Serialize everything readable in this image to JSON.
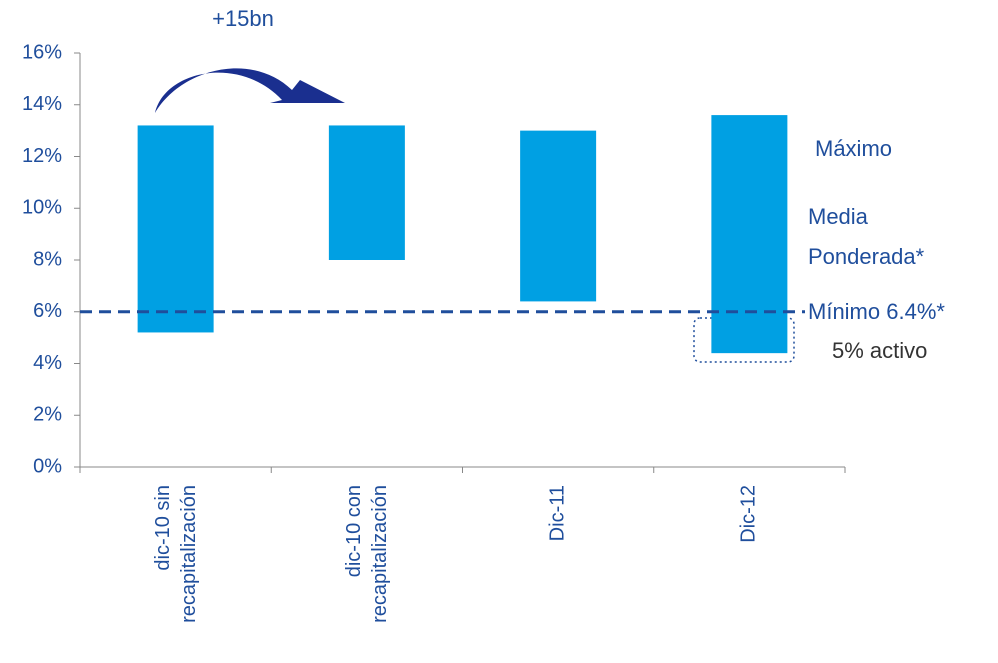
{
  "chart_data": {
    "type": "floating-bar",
    "categories": [
      [
        "dic-10 sin",
        "recapitalización"
      ],
      [
        "dic-10 con",
        "recapitalización"
      ],
      [
        "Dic-11"
      ],
      [
        "Dic-12"
      ]
    ],
    "low": [
      5.2,
      8.0,
      6.4,
      4.4
    ],
    "high": [
      13.2,
      13.2,
      13.0,
      13.6
    ],
    "color": "#00a0e3",
    "reference_line": 6,
    "ylim": [
      0,
      16
    ],
    "yticks": [
      {
        "value": 0,
        "label": "0%"
      },
      {
        "value": 2,
        "label": "2%"
      },
      {
        "value": 4,
        "label": "4%"
      },
      {
        "value": 6,
        "label": "6%"
      },
      {
        "value": 8,
        "label": "8%"
      },
      {
        "value": 10,
        "label": "10%"
      },
      {
        "value": 12,
        "label": "12%"
      },
      {
        "value": 14,
        "label": "14%"
      },
      {
        "value": 16,
        "label": "16%"
      }
    ],
    "annotations": {
      "arrow": "+15bn",
      "max": "Máximo",
      "mean": [
        "Media",
        "Ponderada*"
      ],
      "min": "Mínimo 6.4%*",
      "asset": "5% activo"
    }
  }
}
